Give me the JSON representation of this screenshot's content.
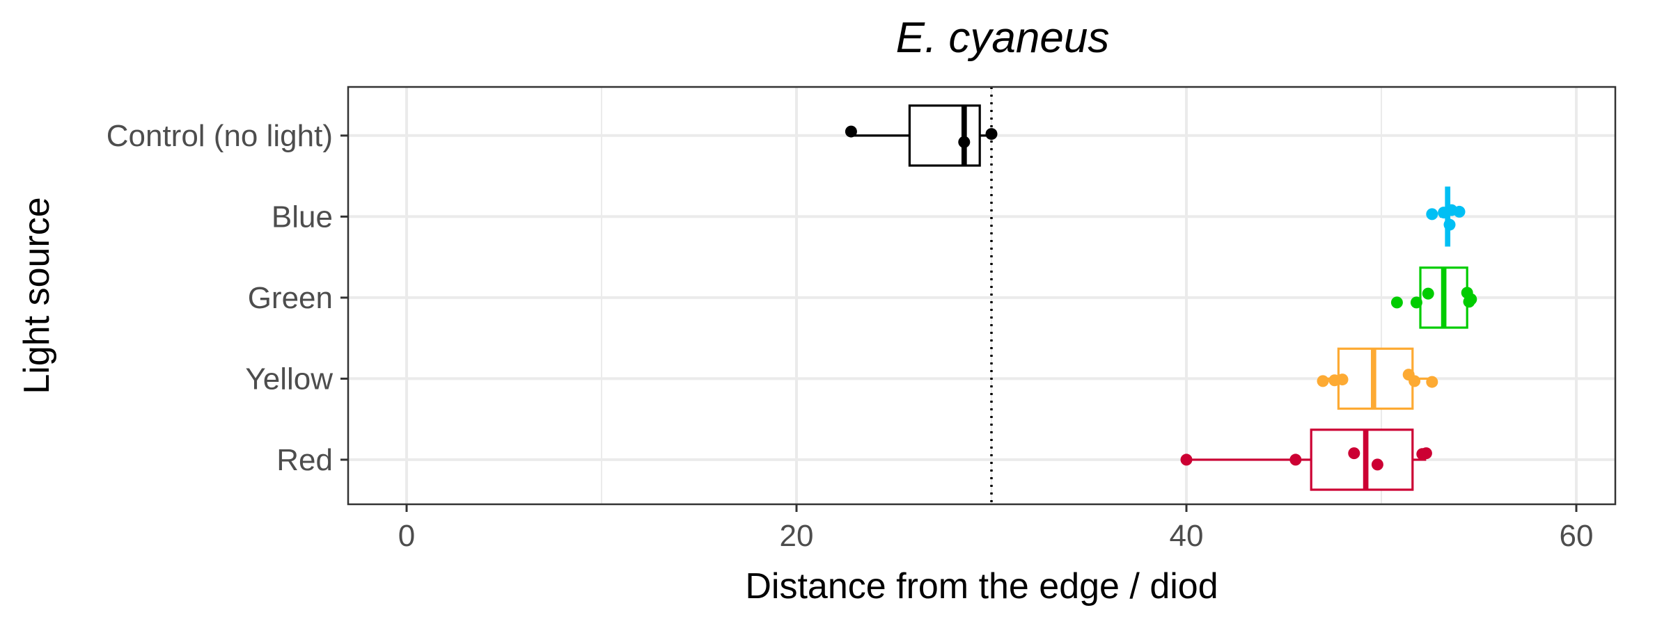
{
  "chart_data": {
    "type": "boxplot",
    "orientation": "horizontal",
    "title": "E. cyaneus",
    "xlabel": "Distance from the edge / diod",
    "ylabel": "Light source",
    "xlim": [
      -3,
      62
    ],
    "xticks": [
      0,
      20,
      40,
      60
    ],
    "grid": true,
    "legend": "none",
    "reference_line": {
      "x": 30,
      "style": "dotted",
      "color": "#000000"
    },
    "categories": [
      "Control (no light)",
      "Blue",
      "Green",
      "Yellow",
      "Red"
    ],
    "series": [
      {
        "name": "Control (no light)",
        "color": "#000000",
        "box": {
          "min": 22.8,
          "q1": 25.8,
          "median": 28.6,
          "q3": 29.4,
          "max": 30.0
        },
        "points": [
          {
            "x": 22.8,
            "jitter": -0.05
          },
          {
            "x": 28.6,
            "jitter": 0.08
          },
          {
            "x": 30.0,
            "jitter": -0.02
          }
        ]
      },
      {
        "name": "Blue",
        "color": "#00BFF4",
        "box": {
          "min": 53.0,
          "q1": 53.4,
          "median": 53.4,
          "q3": 53.4,
          "max": 53.4
        },
        "points": [
          {
            "x": 52.6,
            "jitter": -0.03
          },
          {
            "x": 53.2,
            "jitter": -0.05
          },
          {
            "x": 53.5,
            "jitter": 0.1
          },
          {
            "x": 53.6,
            "jitter": -0.08
          },
          {
            "x": 54.0,
            "jitter": -0.06
          }
        ]
      },
      {
        "name": "Green",
        "color": "#00CC00",
        "box": {
          "min": 52.0,
          "q1": 52.0,
          "median": 53.2,
          "q3": 54.4,
          "max": 54.6
        },
        "points": [
          {
            "x": 50.8,
            "jitter": 0.06
          },
          {
            "x": 51.8,
            "jitter": 0.06
          },
          {
            "x": 52.4,
            "jitter": -0.05
          },
          {
            "x": 54.4,
            "jitter": -0.06
          },
          {
            "x": 54.6,
            "jitter": 0.02
          },
          {
            "x": 54.5,
            "jitter": 0.05
          }
        ]
      },
      {
        "name": "Yellow",
        "color": "#FDAA33",
        "box": {
          "min": 47.0,
          "q1": 47.8,
          "median": 49.6,
          "q3": 51.6,
          "max": 52.6
        },
        "points": [
          {
            "x": 47.0,
            "jitter": 0.03
          },
          {
            "x": 47.6,
            "jitter": 0.02
          },
          {
            "x": 48.0,
            "jitter": 0.01
          },
          {
            "x": 51.4,
            "jitter": -0.05
          },
          {
            "x": 51.7,
            "jitter": 0.03
          },
          {
            "x": 52.6,
            "jitter": 0.04
          }
        ]
      },
      {
        "name": "Red",
        "color": "#CC0033",
        "box": {
          "min": 40.0,
          "q1": 46.4,
          "median": 49.2,
          "q3": 51.6,
          "max": 52.3
        },
        "points": [
          {
            "x": 40.0,
            "jitter": 0.0
          },
          {
            "x": 45.6,
            "jitter": 0.0
          },
          {
            "x": 48.6,
            "jitter": -0.08
          },
          {
            "x": 49.8,
            "jitter": 0.06
          },
          {
            "x": 52.1,
            "jitter": -0.07
          },
          {
            "x": 52.3,
            "jitter": -0.08
          }
        ]
      }
    ]
  }
}
